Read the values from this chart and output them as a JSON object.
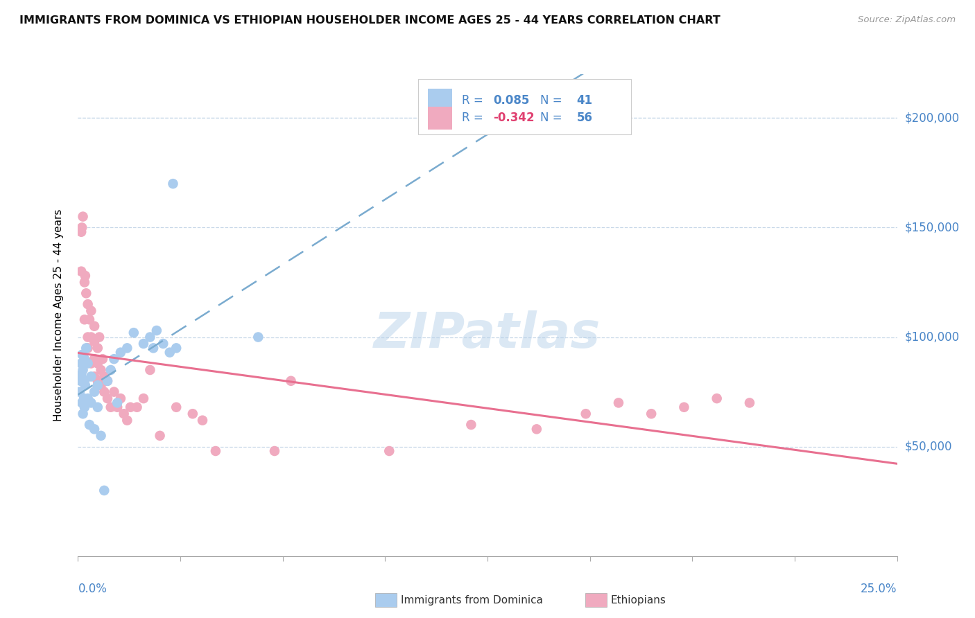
{
  "title": "IMMIGRANTS FROM DOMINICA VS ETHIOPIAN HOUSEHOLDER INCOME AGES 25 - 44 YEARS CORRELATION CHART",
  "source": "Source: ZipAtlas.com",
  "ylabel": "Householder Income Ages 25 - 44 years",
  "watermark": "ZIPatlas",
  "dominica_R": 0.085,
  "dominica_N": 41,
  "ethiopian_R": -0.342,
  "ethiopian_N": 56,
  "dominica_color": "#aaccee",
  "ethiopian_color": "#f0aabf",
  "dominica_trend_color": "#7aabcf",
  "ethiopian_trend_color": "#e87090",
  "text_blue": "#4a86c8",
  "text_R_eth": "#e04070",
  "xmin": 0.0,
  "xmax": 0.25,
  "ymin": 0,
  "ymax": 220000,
  "yticks": [
    50000,
    100000,
    150000,
    200000
  ],
  "ytick_labels": [
    "$50,000",
    "$100,000",
    "$150,000",
    "$200,000"
  ],
  "dominica_x": [
    0.0005,
    0.0008,
    0.001,
    0.001,
    0.0012,
    0.0013,
    0.0015,
    0.0015,
    0.0018,
    0.002,
    0.002,
    0.002,
    0.0022,
    0.0025,
    0.003,
    0.003,
    0.0035,
    0.004,
    0.004,
    0.005,
    0.005,
    0.006,
    0.006,
    0.007,
    0.008,
    0.009,
    0.01,
    0.011,
    0.012,
    0.013,
    0.015,
    0.017,
    0.02,
    0.022,
    0.023,
    0.024,
    0.026,
    0.028,
    0.029,
    0.03,
    0.055
  ],
  "dominica_y": [
    75000,
    80000,
    83000,
    88000,
    70000,
    92000,
    65000,
    85000,
    72000,
    68000,
    80000,
    90000,
    78000,
    95000,
    72000,
    88000,
    60000,
    70000,
    82000,
    58000,
    75000,
    68000,
    78000,
    55000,
    30000,
    80000,
    85000,
    90000,
    70000,
    93000,
    95000,
    102000,
    97000,
    100000,
    95000,
    103000,
    97000,
    93000,
    170000,
    95000,
    100000
  ],
  "ethiopian_x": [
    0.001,
    0.001,
    0.0012,
    0.0015,
    0.002,
    0.002,
    0.0022,
    0.0025,
    0.003,
    0.003,
    0.003,
    0.0035,
    0.004,
    0.004,
    0.004,
    0.005,
    0.005,
    0.005,
    0.005,
    0.006,
    0.006,
    0.006,
    0.0065,
    0.007,
    0.007,
    0.0075,
    0.008,
    0.008,
    0.009,
    0.009,
    0.01,
    0.011,
    0.012,
    0.013,
    0.014,
    0.015,
    0.016,
    0.018,
    0.02,
    0.022,
    0.025,
    0.03,
    0.035,
    0.038,
    0.042,
    0.06,
    0.065,
    0.095,
    0.12,
    0.14,
    0.155,
    0.165,
    0.175,
    0.185,
    0.195,
    0.205
  ],
  "ethiopian_y": [
    148000,
    130000,
    150000,
    155000,
    108000,
    125000,
    128000,
    120000,
    95000,
    100000,
    115000,
    108000,
    88000,
    100000,
    112000,
    82000,
    90000,
    98000,
    105000,
    80000,
    88000,
    95000,
    100000,
    78000,
    85000,
    90000,
    75000,
    82000,
    72000,
    80000,
    68000,
    75000,
    68000,
    72000,
    65000,
    62000,
    68000,
    68000,
    72000,
    85000,
    55000,
    68000,
    65000,
    62000,
    48000,
    48000,
    80000,
    48000,
    60000,
    58000,
    65000,
    70000,
    65000,
    68000,
    72000,
    70000
  ]
}
